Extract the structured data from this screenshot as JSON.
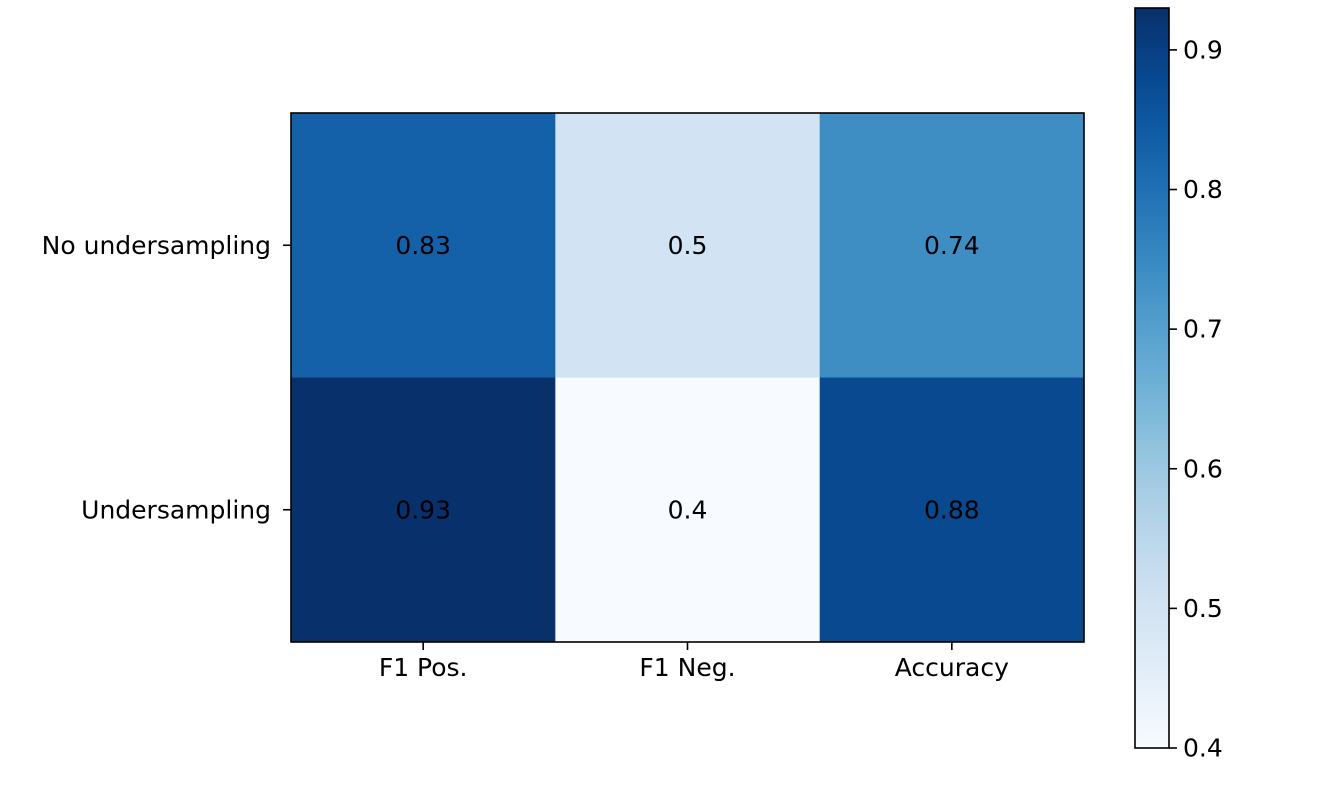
{
  "chart_data": {
    "type": "heatmap",
    "rows": [
      "No undersampling",
      "Undersampling"
    ],
    "columns": [
      "F1 Pos.",
      "F1 Neg.",
      "Accuracy"
    ],
    "values": [
      [
        0.83,
        0.5,
        0.74
      ],
      [
        0.93,
        0.4,
        0.88
      ]
    ],
    "cell_labels": [
      [
        "0.83",
        "0.5",
        "0.74"
      ],
      [
        "0.93",
        "0.4",
        "0.88"
      ]
    ],
    "colormap": "Blues",
    "vmin": 0.4,
    "vmax": 0.93,
    "colorbar_ticks": [
      0.4,
      0.5,
      0.6,
      0.7,
      0.8,
      0.9
    ],
    "colorbar_tick_labels": [
      "0.4",
      "0.5",
      "0.6",
      "0.7",
      "0.8",
      "0.9"
    ],
    "title": "",
    "xlabel": "",
    "ylabel": ""
  }
}
